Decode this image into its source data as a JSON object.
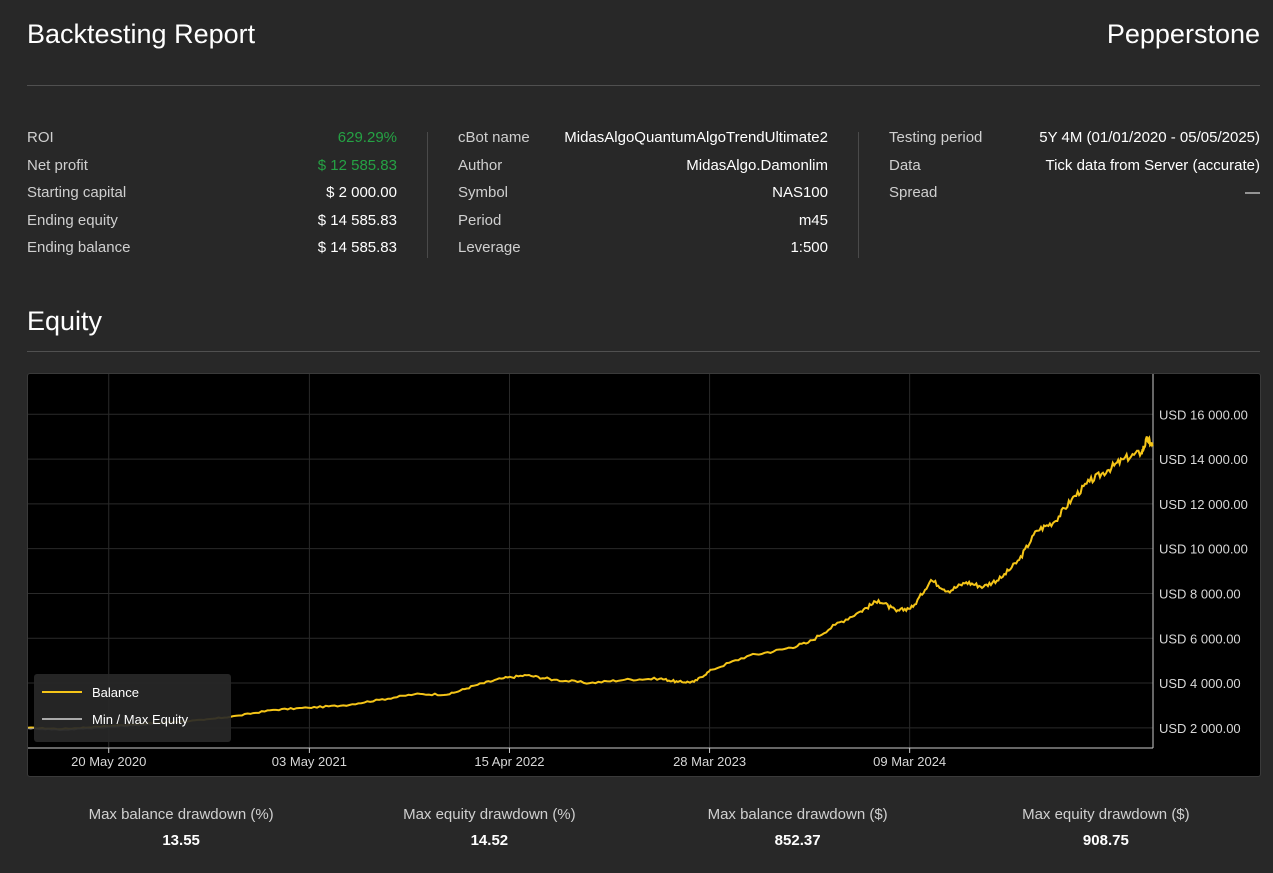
{
  "header": {
    "title": "Backtesting Report",
    "brand": "Pepperstone"
  },
  "stats": {
    "col1": [
      {
        "label": "ROI",
        "value": "629.29%",
        "color": "#25a244"
      },
      {
        "label": "Net profit",
        "value": "$ 12 585.83",
        "color": "#25a244"
      },
      {
        "label": "Starting capital",
        "value": "$ 2 000.00"
      },
      {
        "label": "Ending equity",
        "value": "$ 14 585.83"
      },
      {
        "label": "Ending balance",
        "value": "$ 14 585.83"
      }
    ],
    "col2": [
      {
        "label": "cBot name",
        "value": "MidasAlgoQuantumAlgoTrendUltimate2"
      },
      {
        "label": "Author",
        "value": "MidasAlgo.Damonlim"
      },
      {
        "label": "Symbol",
        "value": "NAS100"
      },
      {
        "label": "Period",
        "value": "m45"
      },
      {
        "label": "Leverage",
        "value": "1:500"
      }
    ],
    "col3": [
      {
        "label": "Testing period",
        "value": "5Y 4M (01/01/2020 - 05/05/2025)"
      },
      {
        "label": "Data",
        "value": "Tick data from Server (accurate)"
      },
      {
        "label": "Spread",
        "value": "—"
      }
    ]
  },
  "section": {
    "title": "Equity"
  },
  "chart_data": {
    "type": "line",
    "title": "",
    "xlabel": "",
    "ylabel": "",
    "x_tick_labels": [
      "20 May 2020",
      "03 May 2021",
      "15 Apr 2022",
      "28 Mar 2023",
      "09 Mar 2024"
    ],
    "x_tick_dates": [
      "2020-05-20",
      "2021-05-03",
      "2022-04-15",
      "2023-03-28",
      "2024-03-09"
    ],
    "x_range": [
      "2020-01-01",
      "2025-05-05"
    ],
    "y_tick_labels": [
      "USD 2 000.00",
      "USD 4 000.00",
      "USD 6 000.00",
      "USD 8 000.00",
      "USD 10 000.00",
      "USD 12 000.00",
      "USD 14 000.00",
      "USD 16 000.00"
    ],
    "y_tick_values": [
      2000,
      4000,
      6000,
      8000,
      10000,
      12000,
      14000,
      16000
    ],
    "ylim": [
      1100,
      17800
    ],
    "grid": true,
    "legend_position": "bottom-left",
    "series": [
      {
        "name": "Balance",
        "color": "#f5c518",
        "points": [
          [
            "2020-01-01",
            2000
          ],
          [
            "2020-03-01",
            1950
          ],
          [
            "2020-05-01",
            2050
          ],
          [
            "2020-07-01",
            2150
          ],
          [
            "2020-09-01",
            2250
          ],
          [
            "2020-11-01",
            2350
          ],
          [
            "2021-01-01",
            2550
          ],
          [
            "2021-03-01",
            2800
          ],
          [
            "2021-05-01",
            2900
          ],
          [
            "2021-07-01",
            3000
          ],
          [
            "2021-09-01",
            3250
          ],
          [
            "2021-11-01",
            3500
          ],
          [
            "2022-01-01",
            3500
          ],
          [
            "2022-02-15",
            3900
          ],
          [
            "2022-04-01",
            4200
          ],
          [
            "2022-05-15",
            4350
          ],
          [
            "2022-07-01",
            4150
          ],
          [
            "2022-09-01",
            4000
          ],
          [
            "2022-11-01",
            4150
          ],
          [
            "2023-01-01",
            4200
          ],
          [
            "2023-02-01",
            4050
          ],
          [
            "2023-03-01",
            4050
          ],
          [
            "2023-04-01",
            4600
          ],
          [
            "2023-06-01",
            5200
          ],
          [
            "2023-08-01",
            5500
          ],
          [
            "2023-09-15",
            5800
          ],
          [
            "2023-11-01",
            6600
          ],
          [
            "2023-12-15",
            7200
          ],
          [
            "2024-01-15",
            7700
          ],
          [
            "2024-02-15",
            7200
          ],
          [
            "2024-03-15",
            7400
          ],
          [
            "2024-04-15",
            8600
          ],
          [
            "2024-05-15",
            8100
          ],
          [
            "2024-06-15",
            8500
          ],
          [
            "2024-07-15",
            8300
          ],
          [
            "2024-08-15",
            8700
          ],
          [
            "2024-09-15",
            9500
          ],
          [
            "2024-10-15",
            10800
          ],
          [
            "2024-11-15",
            11200
          ],
          [
            "2024-12-15",
            12200
          ],
          [
            "2025-01-15",
            13000
          ],
          [
            "2025-02-15",
            13500
          ],
          [
            "2025-03-15",
            14000
          ],
          [
            "2025-04-15",
            14300
          ],
          [
            "2025-04-25",
            14900
          ],
          [
            "2025-05-05",
            14586
          ]
        ]
      },
      {
        "name": "Min / Max Equity",
        "color": "#aaaaaa",
        "points": [
          [
            "2020-01-01",
            1980
          ],
          [
            "2020-03-01",
            1900
          ],
          [
            "2020-05-01",
            2000
          ],
          [
            "2020-07-01",
            2100
          ],
          [
            "2020-09-01",
            2200
          ]
        ]
      }
    ]
  },
  "drawdowns": [
    {
      "label": "Max balance drawdown (%)",
      "value": "13.55"
    },
    {
      "label": "Max equity drawdown (%)",
      "value": "14.52"
    },
    {
      "label": "Max balance drawdown ($)",
      "value": "852.37"
    },
    {
      "label": "Max equity drawdown ($)",
      "value": "908.75"
    }
  ]
}
